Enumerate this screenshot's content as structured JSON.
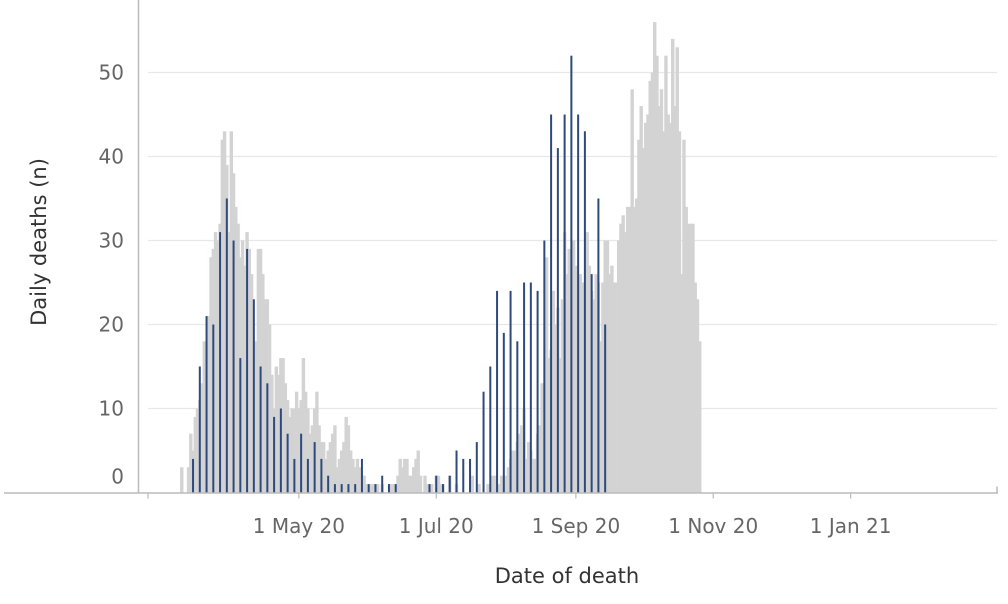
{
  "chart_data": {
    "type": "bar",
    "title": "",
    "xlabel": "Date of death",
    "ylabel": "Daily deaths (n)",
    "ylim": [
      0,
      58
    ],
    "xlim": [
      "2020-02-24",
      "2021-03-07"
    ],
    "grid": true,
    "colors": {
      "daily": "#d3d3d3",
      "weekly": "#2e4a7d",
      "grid": "#e8e8e8",
      "axis": "#bbbbbb"
    },
    "x_ticks": [
      {
        "date": "2020-05-01",
        "label": "1 May 20"
      },
      {
        "date": "2020-07-01",
        "label": "1 Jul 20"
      },
      {
        "date": "2020-09-01",
        "label": "1 Sep 20"
      },
      {
        "date": "2020-11-01",
        "label": "1 Nov 20"
      },
      {
        "date": "2021-01-01",
        "label": "1 Jan 21"
      }
    ],
    "y_ticks": [
      0,
      10,
      20,
      30,
      40,
      50
    ],
    "series": [
      {
        "style": "light-bars",
        "start_date": "2020-03-10",
        "values": [
          3,
          0,
          0,
          3,
          7,
          5,
          9,
          10,
          11,
          13,
          18,
          16,
          21,
          28,
          29,
          31,
          30,
          32,
          42,
          43,
          39,
          31,
          43,
          38,
          34,
          32,
          28,
          30,
          27,
          31,
          29,
          26,
          16,
          18,
          29,
          29,
          26,
          23,
          23,
          20,
          14,
          10,
          15,
          14,
          16,
          16,
          13,
          11,
          9,
          10,
          10,
          12,
          10,
          11,
          16,
          12,
          10,
          7,
          8,
          10,
          12,
          8,
          6,
          6,
          4,
          5,
          6,
          7,
          8,
          3,
          4,
          5,
          6,
          9,
          8,
          5,
          4,
          3,
          4,
          3,
          2,
          2,
          1,
          0,
          1,
          1,
          1,
          1,
          0,
          1,
          0,
          0,
          0,
          1,
          1,
          0,
          2,
          4,
          3,
          4,
          4,
          2,
          2,
          3,
          4,
          5,
          2,
          0,
          2,
          1,
          0,
          1,
          0,
          2,
          2,
          1,
          1,
          0,
          0,
          2,
          0,
          0,
          1,
          0,
          0,
          0,
          0,
          0,
          0,
          2,
          0,
          0,
          1,
          0,
          0,
          0,
          1,
          1,
          2,
          2,
          0,
          1,
          2,
          1,
          2,
          3,
          4,
          5,
          5,
          6,
          7,
          8,
          10,
          4,
          6,
          5,
          4,
          4,
          7,
          8,
          13,
          13,
          28,
          16,
          17,
          24,
          20,
          22,
          16,
          23,
          31,
          26,
          29,
          28,
          30,
          27,
          25,
          26,
          25,
          22,
          31,
          27,
          24,
          23,
          26,
          25,
          18,
          25,
          30,
          30,
          26,
          27,
          25,
          25,
          30,
          32,
          33,
          31,
          34,
          34,
          48,
          34,
          35,
          42,
          46,
          41,
          44,
          45,
          49,
          50,
          56,
          52,
          46,
          48,
          43,
          52,
          45,
          44,
          54,
          46,
          53,
          43,
          26,
          42,
          34,
          32,
          32,
          32,
          25,
          23,
          18
        ]
      },
      {
        "style": "dark-lines",
        "start_date": "2020-03-15",
        "interval_days": 3,
        "values": [
          4,
          15,
          21,
          20,
          31,
          35,
          30,
          16,
          29,
          23,
          15,
          13,
          9,
          10,
          7,
          4,
          7,
          4,
          6,
          4,
          2,
          1,
          1,
          1,
          1,
          4,
          1,
          1,
          2,
          1,
          1,
          0,
          0,
          0,
          0,
          1,
          2,
          1,
          2,
          5,
          4,
          4,
          6,
          12,
          15,
          24,
          19,
          24,
          18,
          25,
          25,
          24,
          30,
          45,
          41,
          45,
          52,
          45,
          43,
          26,
          35,
          20
        ]
      }
    ]
  }
}
